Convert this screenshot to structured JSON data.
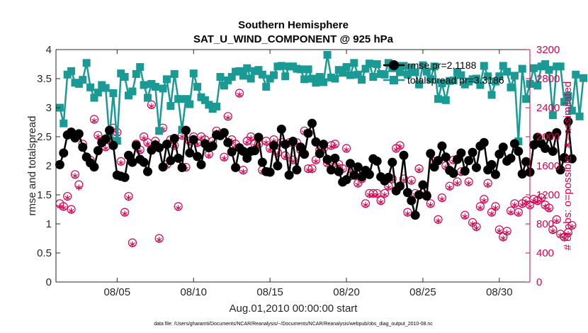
{
  "chart_data": {
    "type": "line",
    "title": "Southern Hemisphere",
    "subtitle": "SAT_U_WIND_COMPONENT @ 925 hPa",
    "xlabel": "Aug.01,2010 00:00:00 start",
    "ylabel": "rmse and totalspread",
    "y2label": "# of obs: o=possible; ∗=assimilated",
    "footnote": "data file: /Users/gharamti/Documents/NCAR/Reanalysis/~/Documents/NCAR/Reanalysis/webpub/obs_diag_output_2010-08.nc",
    "xlim": [
      1.0,
      32.0
    ],
    "ylim": [
      0,
      4
    ],
    "y2lim": [
      0,
      3200
    ],
    "x_ticks": [
      5,
      10,
      15,
      20,
      25,
      30
    ],
    "x_ticklabels": [
      "08/05",
      "08/10",
      "08/15",
      "08/20",
      "08/25",
      "08/30"
    ],
    "y_ticks": [
      0,
      0.5,
      1,
      1.5,
      2,
      2.5,
      3,
      3.5,
      4
    ],
    "y_ticklabels": [
      "0",
      "0.5",
      "1",
      "1.5",
      "2",
      "2.5",
      "3",
      "3.5",
      "4"
    ],
    "y2_ticks": [
      0,
      400,
      800,
      1200,
      1600,
      2000,
      2400,
      2800,
      3200
    ],
    "y2_ticklabels": [
      "0",
      "400",
      "800",
      "1200",
      "1600",
      "2000",
      "2400",
      "2800",
      "3200"
    ],
    "legend": {
      "placement": "top-right",
      "entries": [
        "rmse pr=2.1188",
        "totalspread pr=3.3186"
      ]
    },
    "series": [
      {
        "name": "rmse pr=2.1188",
        "color": "#000000",
        "marker": "filled-circle",
        "axis": "left",
        "x_start": 1.25,
        "x_step": 0.25,
        "values": [
          2.02,
          2.22,
          2.53,
          2.58,
          2.48,
          2.55,
          2.32,
          2.15,
          2.05,
          1.98,
          2.26,
          2.4,
          2.46,
          2.61,
          2.35,
          1.84,
          1.82,
          1.8,
          2.18,
          2.06,
          2.35,
          2.11,
          2.06,
          1.9,
          2.27,
          2.36,
          2.31,
          1.98,
          2.37,
          2.09,
          2.47,
          2.13,
          1.97,
          2.61,
          2.22,
          2.45,
          2.16,
          2.02,
          2.38,
          2.31,
          2.34,
          2.53,
          2.52,
          2.57,
          2.4,
          2.24,
          1.97,
          2.31,
          2.25,
          2.13,
          2.25,
          2.26,
          2.49,
          2.06,
          1.9,
          1.89,
          2.35,
          2.0,
          2.63,
          2.37,
          1.84,
          2.42,
          1.93,
          2.32,
          2.2,
          2.56,
          2.73,
          2.41,
          2.21,
          2.37,
          2.11,
          1.93,
          2.13,
          1.9,
          1.72,
          1.76,
          2.04,
          1.84,
          1.98,
          1.81,
          1.92,
          1.85,
          2.12,
          2.08,
          1.81,
          1.74,
          1.8,
          2.06,
          1.57,
          1.65,
          2.18,
          1.54,
          1.4,
          1.15,
          1.5,
          1.67,
          1.48,
          2.21,
          1.98,
          2.09,
          2.34,
          2.15,
          1.92,
          1.87,
          2.11,
          2.22,
          1.91,
          2.09,
          2.23,
          1.97,
          2.34,
          2.4,
          1.93,
          2.02,
          1.85,
          2.2,
          2.32,
          2.08,
          2.13,
          2.38,
          2.25,
          1.86,
          2.07,
          1.89,
          2.36,
          2.49,
          2.38,
          2.3,
          2.51,
          2.25,
          2.57,
          1.93,
          2.14,
          2.76,
          2.12
        ]
      },
      {
        "name": "totalspread pr=3.3186",
        "color": "#1a9a94",
        "marker": "filled-square",
        "axis": "left",
        "x_start": 1.25,
        "x_step": 0.25,
        "values": [
          3.0,
          2.73,
          3.57,
          3.63,
          3.43,
          3.41,
          3.48,
          3.77,
          3.35,
          3.17,
          3.26,
          3.39,
          3.34,
          2.49,
          3.25,
          2.43,
          3.59,
          3.53,
          3.21,
          3.28,
          3.58,
          3.7,
          3.39,
          3.17,
          3.41,
          3.36,
          2.6,
          3.33,
          3.49,
          3.03,
          3.58,
          3.15,
          2.62,
          3.15,
          3.06,
          3.59,
          3.36,
          3.18,
          3.13,
          3.05,
          2.98,
          3.02,
          3.53,
          3.38,
          3.47,
          3.53,
          3.62,
          3.63,
          3.55,
          3.68,
          3.5,
          3.63,
          3.65,
          3.57,
          3.36,
          3.5,
          3.56,
          3.71,
          3.72,
          3.54,
          3.71,
          3.71,
          3.67,
          3.66,
          3.49,
          3.66,
          3.5,
          3.43,
          3.53,
          3.44,
          3.91,
          3.52,
          3.5,
          3.65,
          3.6,
          3.7,
          3.56,
          3.77,
          3.57,
          3.48,
          3.67,
          3.76,
          3.53,
          3.75,
          3.58,
          3.57,
          3.77,
          3.68,
          3.72,
          3.61,
          3.72,
          3.57,
          3.68,
          3.61,
          3.4,
          3.73,
          3.62,
          3.49,
          3.71,
          3.15,
          3.42,
          3.13,
          3.46,
          3.47,
          3.61,
          3.56,
          3.4,
          3.45,
          3.49,
          3.5,
          3.39,
          3.72,
          3.54,
          3.22,
          3.45,
          3.54,
          3.72,
          3.62,
          3.35,
          3.55,
          2.42,
          3.67,
          3.15,
          3.41,
          3.68,
          3.38,
          3.71,
          3.75,
          3.65,
          2.87,
          3.71,
          3.71,
          3.1,
          3.2,
          2.95,
          3.57,
          2.85,
          3.51
        ]
      },
      {
        "name": "obs possible",
        "color": "#d6004f",
        "marker": "open-circle",
        "axis": "right",
        "x_start": 1.25,
        "x_step": 0.25,
        "values": [
          1080,
          1040,
          1180,
          1000,
          1480,
          1340,
          1900,
          1720,
          1680,
          2240,
          2020,
          1940,
          1860,
          1960,
          2120,
          2060,
          1660,
          960,
          1180,
          540,
          1900,
          1820,
          2000,
          1920,
          2440,
          1940,
          600,
          2120,
          1620,
          1960,
          1880,
          1040,
          2020,
          1580,
          1940,
          2000,
          1920,
          2000,
          1960,
          1760,
          1940,
          2080,
          2040,
          1720,
          2280,
          1960,
          1900,
          2600,
          1540,
          1940,
          2000,
          1900,
          1900,
          1540,
          1940,
          1840,
          1960,
          1780,
          1920,
          1740,
          1920,
          1680,
          1920,
          1820,
          2080,
          1560,
          1560,
          1680,
          1820,
          1840,
          1640,
          1880,
          1900,
          1620,
          1560,
          1840,
          1460,
          1540,
          1360,
          1420,
          1080,
          1220,
          1220,
          1220,
          1120,
          1220,
          1320,
          1420,
          1840,
          1880,
          1420,
          960,
          1400,
          1220,
          1560,
          1340,
          1200,
          1080,
          1660,
          860,
          1160,
          1600,
          1320,
          1680,
          1380,
          1520,
          920,
          1380,
          820,
          760,
          1040,
          1140,
          1360,
          960,
          1040,
          720,
          620,
          700,
          980,
          1080,
          960,
          1080,
          1120,
          1060,
          1140,
          1120,
          1160,
          1060,
          1020,
          720,
          860,
          660,
          620,
          680,
          780
        ]
      },
      {
        "name": "obs assimilated",
        "color": "#d6004f",
        "marker": "asterisk",
        "axis": "right",
        "x_start": 1.25,
        "x_step": 0.25,
        "values": [
          1040,
          1020,
          1160,
          980,
          1460,
          1300,
          1860,
          1700,
          1640,
          2220,
          2000,
          1920,
          1840,
          1940,
          2100,
          2040,
          1640,
          940,
          1160,
          520,
          1880,
          1800,
          1980,
          1900,
          2420,
          1920,
          580,
          2100,
          1600,
          1940,
          1860,
          1020,
          2000,
          1560,
          1920,
          1980,
          1900,
          1980,
          1940,
          1740,
          1920,
          2060,
          2020,
          1700,
          2260,
          1940,
          1880,
          2580,
          1520,
          1920,
          1980,
          1880,
          1880,
          1520,
          1920,
          1820,
          1940,
          1760,
          1900,
          1720,
          1900,
          1660,
          1900,
          1800,
          2060,
          1540,
          1540,
          1660,
          1800,
          1820,
          1620,
          1860,
          1880,
          1600,
          1540,
          1820,
          1440,
          1520,
          1340,
          1400,
          1060,
          1200,
          1200,
          1200,
          1100,
          1200,
          1300,
          1400,
          1820,
          1860,
          1400,
          940,
          1380,
          1200,
          1540,
          1320,
          1180,
          1060,
          1640,
          840,
          1140,
          1580,
          1300,
          1660,
          1360,
          1500,
          900,
          1360,
          800,
          740,
          1020,
          1120,
          1340,
          940,
          1020,
          700,
          600,
          680,
          960,
          1060,
          940,
          1060,
          1100,
          1040,
          1120,
          1100,
          1140,
          1040,
          1000,
          700,
          840,
          640,
          600,
          660,
          760
        ]
      }
    ]
  }
}
